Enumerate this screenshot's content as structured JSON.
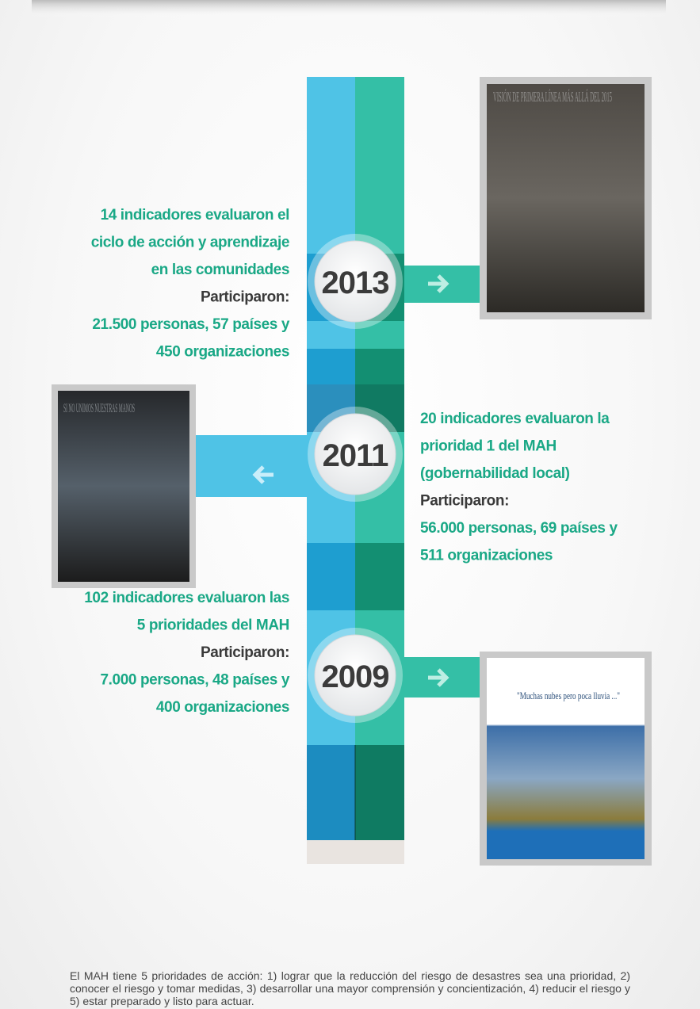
{
  "timeline": [
    {
      "year": "2013",
      "headline": [
        "14 indicadores evaluaron el",
        "ciclo de acción y aprendizaje",
        "en las comunidades"
      ],
      "participants_label": "Participaron:",
      "stats": [
        "21.500 personas, 57 países y",
        "450 organizaciones"
      ]
    },
    {
      "year": "2011",
      "headline": [
        "20 indicadores evaluaron la",
        "prioridad 1 del MAH",
        "(gobernabilidad local)"
      ],
      "participants_label": "Participaron:",
      "stats": [
        "56.000 personas, 69 países y",
        "511 organizaciones"
      ]
    },
    {
      "year": "2009",
      "headline": [
        "102 indicadores evaluaron las",
        "5 prioridades del MAH"
      ],
      "participants_label": "Participaron:",
      "stats": [
        "7.000 personas, 48 países y",
        "400 organizaciones"
      ]
    }
  ],
  "covers": [
    {
      "title": "VISIÓN DE PRIMERA LÍNEA MÁS ALLÁ DEL 2015"
    },
    {
      "title": "SI NO UNIMOS NUESTRAS MANOS"
    },
    {
      "title": "\"Muchas nubes pero poca lluvia ...\""
    }
  ],
  "note": "El MAH tiene 5 prioridades de acción: 1) lograr que la reducción del riesgo de desastres sea una prioridad, 2) conocer el riesgo y tomar medidas, 3) desarrollar una mayor comprensión y concientización, 4) reducir el riesgo y 5) estar preparado y listo para actuar."
}
